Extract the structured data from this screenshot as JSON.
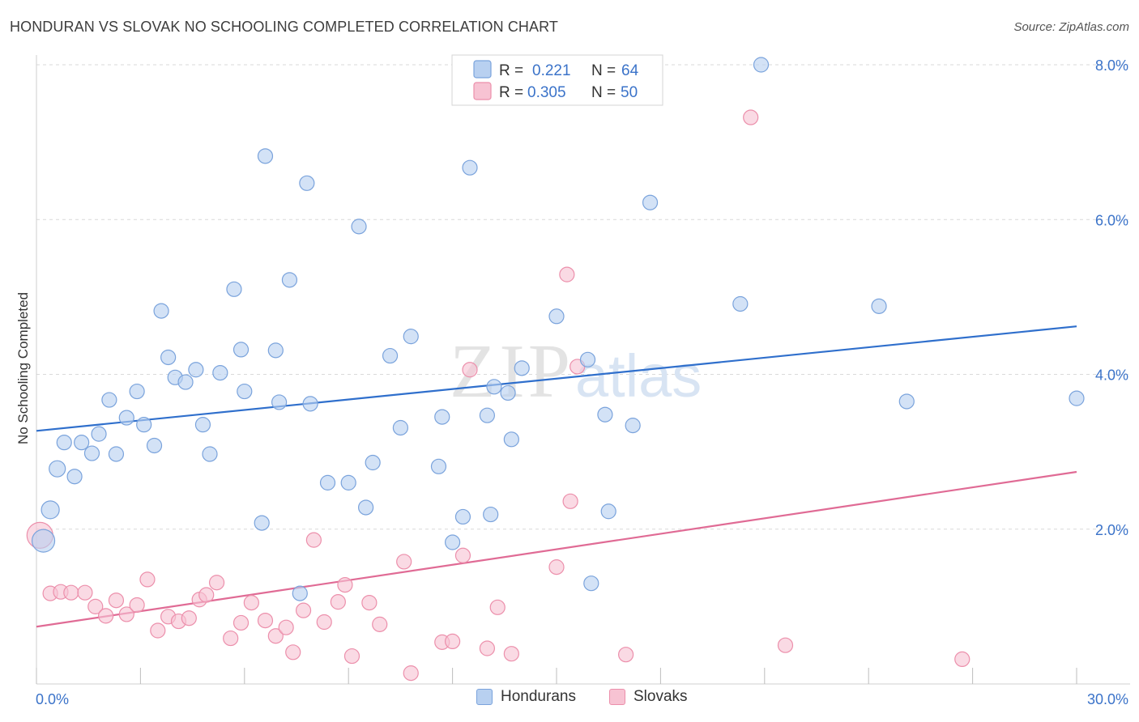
{
  "header": {
    "title": "HONDURAN VS SLOVAK NO SCHOOLING COMPLETED CORRELATION CHART",
    "source": "Source: ZipAtlas.com"
  },
  "watermark": {
    "zip": "ZIP",
    "atlas": "atlas"
  },
  "legend_top": {
    "rows": [
      {
        "r_label": "R =",
        "r_value": "0.221",
        "n_label": "N =",
        "n_value": "64"
      },
      {
        "r_label": "R =",
        "r_value": "0.305",
        "n_label": "N =",
        "n_value": "50"
      }
    ]
  },
  "legend_bottom": {
    "hondurans": "Hondurans",
    "slovaks": "Slovaks"
  },
  "colors": {
    "blue_fill": "#b8d0f0",
    "blue_stroke": "#7aa3dc",
    "blue_line": "#2f6fcc",
    "pink_fill": "#f7c3d3",
    "pink_stroke": "#ec8fab",
    "pink_line": "#e06b95",
    "axis_text": "#3b73c9",
    "grid": "#d9d9d9"
  },
  "chart_data": {
    "type": "scatter",
    "title": "HONDURAN VS SLOVAK NO SCHOOLING COMPLETED CORRELATION CHART",
    "xlabel": "",
    "ylabel": "No Schooling Completed",
    "xlim": [
      0,
      30
    ],
    "ylim": [
      0,
      8
    ],
    "x_tick_labels": [
      "0.0%",
      "30.0%"
    ],
    "y_ticks": [
      2,
      4,
      6,
      8
    ],
    "y_tick_labels": [
      "2.0%",
      "4.0%",
      "6.0%",
      "8.0%"
    ],
    "series": [
      {
        "name": "Hondurans",
        "r": 0.221,
        "n": 64,
        "trend": {
          "x": [
            0,
            30
          ],
          "y": [
            3.27,
            4.62
          ]
        },
        "points": [
          [
            0.2,
            1.85,
            14
          ],
          [
            0.4,
            2.25,
            11
          ],
          [
            0.6,
            2.78,
            10
          ],
          [
            0.8,
            3.12,
            9
          ],
          [
            1.1,
            2.68,
            9
          ],
          [
            1.3,
            3.12,
            9
          ],
          [
            1.6,
            2.98,
            9
          ],
          [
            1.8,
            3.23,
            9
          ],
          [
            2.1,
            3.67,
            9
          ],
          [
            2.3,
            2.97,
            9
          ],
          [
            2.6,
            3.44,
            9
          ],
          [
            2.9,
            3.78,
            9
          ],
          [
            3.1,
            3.35,
            9
          ],
          [
            3.4,
            3.08,
            9
          ],
          [
            3.6,
            4.82,
            9
          ],
          [
            3.8,
            4.22,
            9
          ],
          [
            4.0,
            3.96,
            9
          ],
          [
            4.3,
            3.9,
            9
          ],
          [
            4.6,
            4.06,
            9
          ],
          [
            4.8,
            3.35,
            9
          ],
          [
            5.0,
            2.97,
            9
          ],
          [
            5.3,
            4.02,
            9
          ],
          [
            5.7,
            5.1,
            9
          ],
          [
            5.9,
            4.32,
            9
          ],
          [
            6.0,
            3.78,
            9
          ],
          [
            6.5,
            2.08,
            9
          ],
          [
            6.6,
            6.82,
            9
          ],
          [
            6.9,
            4.31,
            9
          ],
          [
            7.0,
            3.64,
            9
          ],
          [
            7.3,
            5.22,
            9
          ],
          [
            7.6,
            1.17,
            9
          ],
          [
            7.8,
            6.47,
            9
          ],
          [
            7.9,
            3.62,
            9
          ],
          [
            8.4,
            2.6,
            9
          ],
          [
            9.0,
            2.6,
            9
          ],
          [
            9.3,
            5.91,
            9
          ],
          [
            9.5,
            2.28,
            9
          ],
          [
            9.7,
            2.86,
            9
          ],
          [
            10.2,
            4.24,
            9
          ],
          [
            10.5,
            3.31,
            9
          ],
          [
            10.8,
            4.49,
            9
          ],
          [
            11.6,
            2.81,
            9
          ],
          [
            11.7,
            3.45,
            9
          ],
          [
            12.0,
            1.83,
            9
          ],
          [
            12.3,
            2.16,
            9
          ],
          [
            12.5,
            6.67,
            9
          ],
          [
            13.0,
            3.47,
            9
          ],
          [
            13.1,
            2.19,
            9
          ],
          [
            13.2,
            3.84,
            9
          ],
          [
            13.6,
            3.76,
            9
          ],
          [
            13.7,
            3.16,
            9
          ],
          [
            14.0,
            4.08,
            9
          ],
          [
            15.0,
            4.75,
            9
          ],
          [
            15.9,
            4.19,
            9
          ],
          [
            16.0,
            1.3,
            9
          ],
          [
            16.4,
            3.48,
            9
          ],
          [
            16.5,
            2.23,
            9
          ],
          [
            17.2,
            3.34,
            9
          ],
          [
            17.7,
            6.22,
            9
          ],
          [
            20.3,
            4.91,
            9
          ],
          [
            20.9,
            8.0,
            9
          ],
          [
            24.3,
            4.88,
            9
          ],
          [
            25.1,
            3.65,
            9
          ],
          [
            30.0,
            3.69,
            9
          ]
        ]
      },
      {
        "name": "Slovaks",
        "r": 0.305,
        "n": 50,
        "trend": {
          "x": [
            0,
            30
          ],
          "y": [
            0.74,
            2.74
          ]
        },
        "points": [
          [
            0.1,
            1.92,
            16
          ],
          [
            0.4,
            1.17,
            9
          ],
          [
            0.7,
            1.19,
            9
          ],
          [
            1.0,
            1.18,
            9
          ],
          [
            1.4,
            1.18,
            9
          ],
          [
            1.7,
            1.0,
            9
          ],
          [
            2.0,
            0.88,
            9
          ],
          [
            2.3,
            1.08,
            9
          ],
          [
            2.6,
            0.9,
            9
          ],
          [
            2.9,
            1.02,
            9
          ],
          [
            3.2,
            1.35,
            9
          ],
          [
            3.5,
            0.69,
            9
          ],
          [
            3.8,
            0.87,
            9
          ],
          [
            4.1,
            0.81,
            9
          ],
          [
            4.4,
            0.85,
            9
          ],
          [
            4.7,
            1.09,
            9
          ],
          [
            4.9,
            1.15,
            9
          ],
          [
            5.2,
            1.31,
            9
          ],
          [
            5.6,
            0.59,
            9
          ],
          [
            5.9,
            0.79,
            9
          ],
          [
            6.2,
            1.05,
            9
          ],
          [
            6.6,
            0.82,
            9
          ],
          [
            6.9,
            0.62,
            9
          ],
          [
            7.2,
            0.73,
            9
          ],
          [
            7.4,
            0.41,
            9
          ],
          [
            7.7,
            0.95,
            9
          ],
          [
            8.0,
            1.86,
            9
          ],
          [
            8.3,
            0.8,
            9
          ],
          [
            8.7,
            1.06,
            9
          ],
          [
            8.9,
            1.28,
            9
          ],
          [
            9.1,
            0.36,
            9
          ],
          [
            9.6,
            1.05,
            9
          ],
          [
            9.9,
            0.77,
            9
          ],
          [
            10.6,
            1.58,
            9
          ],
          [
            10.8,
            0.14,
            9
          ],
          [
            11.7,
            0.54,
            9
          ],
          [
            12.0,
            0.55,
            9
          ],
          [
            12.3,
            1.66,
            9
          ],
          [
            12.5,
            4.06,
            9
          ],
          [
            13.0,
            0.46,
            9
          ],
          [
            13.3,
            0.99,
            9
          ],
          [
            13.7,
            0.39,
            9
          ],
          [
            15.0,
            1.51,
            9
          ],
          [
            15.3,
            5.29,
            9
          ],
          [
            15.4,
            2.36,
            9
          ],
          [
            15.6,
            4.1,
            9
          ],
          [
            17.0,
            0.38,
            9
          ],
          [
            20.6,
            7.32,
            9
          ],
          [
            21.6,
            0.5,
            9
          ],
          [
            26.7,
            0.32,
            9
          ]
        ]
      }
    ]
  }
}
